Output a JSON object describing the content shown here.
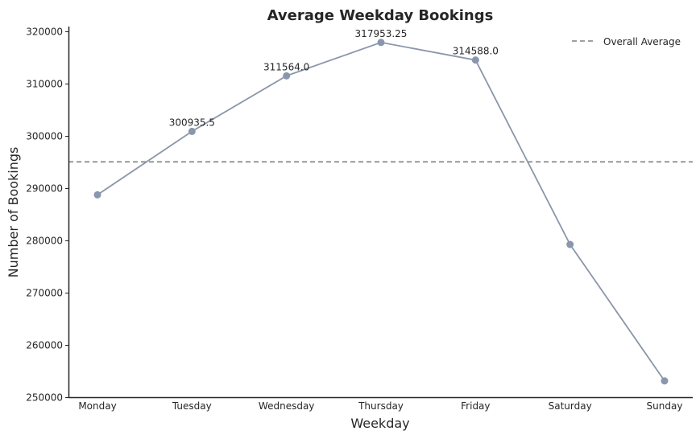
{
  "chart_data": {
    "type": "line",
    "title": "Average Weekday Bookings",
    "xlabel": "Weekday",
    "ylabel": "Number of Bookings",
    "categories": [
      "Monday",
      "Tuesday",
      "Wednesday",
      "Thursday",
      "Friday",
      "Saturday",
      "Sunday"
    ],
    "values": [
      288800,
      300935.5,
      311564.0,
      317953.25,
      314588.0,
      279300,
      253200
    ],
    "data_labels": [
      "",
      "300935.5",
      "311564.0",
      "317953.25",
      "314588.0",
      "",
      ""
    ],
    "ylim": [
      250000,
      321000
    ],
    "yticks": [
      "250000",
      "260000",
      "270000",
      "280000",
      "290000",
      "300000",
      "310000",
      "320000"
    ],
    "reference_line": {
      "name": "Overall Average",
      "value": 295100,
      "style": "dashed"
    },
    "legend": {
      "position": "top-right",
      "entries": [
        "Overall Average"
      ]
    },
    "grid": false,
    "colors": {
      "line": "#8a96ab",
      "marker": "#8a96ab",
      "reference": "#808080",
      "axis": "#262626"
    }
  }
}
